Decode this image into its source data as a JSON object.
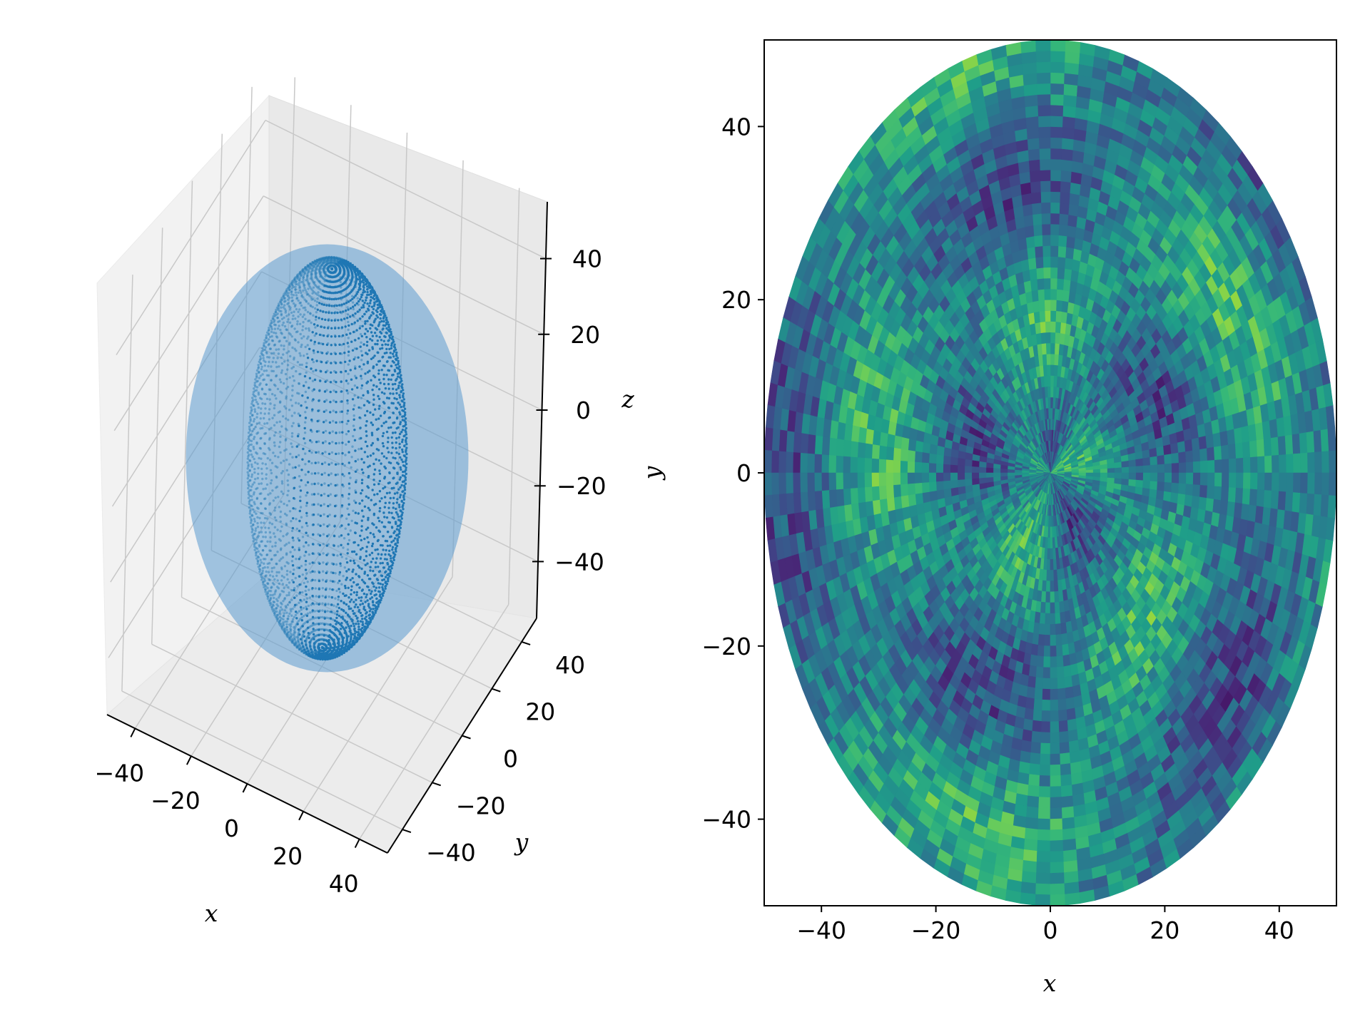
{
  "chart_data": [
    {
      "type": "scatter",
      "projection": "3d",
      "shape": "ellipsoid (prolate spheroid) sampled on a latitude/longitude point grid",
      "xlabel": "x",
      "ylabel": "y",
      "zlabel": "z",
      "x_ticks": [
        "−40",
        "−20",
        "0",
        "20",
        "40"
      ],
      "y_ticks": [
        "−40",
        "−20",
        "0",
        "20",
        "40"
      ],
      "z_ticks": [
        "40",
        "20",
        "0",
        "−20",
        "−40"
      ],
      "xlim": [
        -50,
        50
      ],
      "ylim": [
        -50,
        50
      ],
      "zlim": [
        -55,
        55
      ],
      "semi_axes": {
        "x": 25,
        "y": 25,
        "z": 50
      },
      "grid": true,
      "marker_color": "#1f77b4"
    },
    {
      "type": "heatmap",
      "projection": "polar grid in Cartesian axes",
      "colormap": "viridis",
      "xlabel": "x",
      "ylabel": "y",
      "x_ticks": [
        "−40",
        "−20",
        "0",
        "20",
        "40"
      ],
      "y_ticks": [
        "40",
        "20",
        "0",
        "−20",
        "−40"
      ],
      "xlim": [
        -50,
        50
      ],
      "ylim": [
        -50,
        50
      ],
      "radius": 50,
      "value_range": [
        0,
        1
      ],
      "grid": false
    }
  ]
}
